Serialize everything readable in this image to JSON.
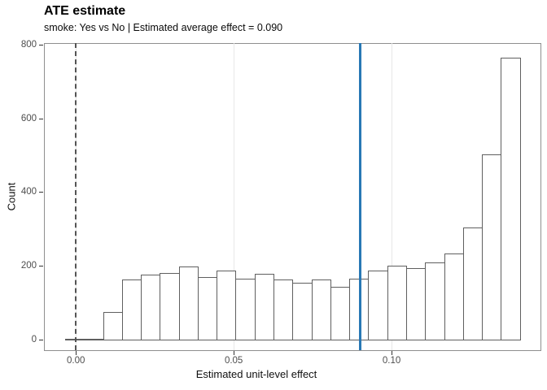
{
  "header": {
    "title": "ATE estimate",
    "subtitle": "smoke: Yes vs No | Estimated average effect = 0.090"
  },
  "chart_data": {
    "type": "bar",
    "subtype": "histogram",
    "title": "ATE estimate",
    "subtitle": "smoke: Yes vs No | Estimated average effect = 0.090",
    "xlabel": "Estimated unit-level effect",
    "ylabel": "Count",
    "xlim": [
      -0.0101,
      0.1474
    ],
    "ylim": [
      -30.9,
      804.4
    ],
    "grid": "vertical-only",
    "binwidth": 0.006,
    "bins": [
      {
        "x0": -0.0034,
        "count": 2
      },
      {
        "x0": 0.0026,
        "count": 2
      },
      {
        "x0": 0.0086,
        "count": 75
      },
      {
        "x0": 0.0146,
        "count": 163
      },
      {
        "x0": 0.0206,
        "count": 176
      },
      {
        "x0": 0.0266,
        "count": 180
      },
      {
        "x0": 0.0326,
        "count": 198
      },
      {
        "x0": 0.0386,
        "count": 170
      },
      {
        "x0": 0.0446,
        "count": 188
      },
      {
        "x0": 0.0506,
        "count": 165
      },
      {
        "x0": 0.0566,
        "count": 178
      },
      {
        "x0": 0.0626,
        "count": 164
      },
      {
        "x0": 0.0686,
        "count": 154
      },
      {
        "x0": 0.0746,
        "count": 163
      },
      {
        "x0": 0.0806,
        "count": 143
      },
      {
        "x0": 0.0866,
        "count": 165
      },
      {
        "x0": 0.0926,
        "count": 187
      },
      {
        "x0": 0.0986,
        "count": 200
      },
      {
        "x0": 0.1046,
        "count": 194
      },
      {
        "x0": 0.1106,
        "count": 209
      },
      {
        "x0": 0.1166,
        "count": 234
      },
      {
        "x0": 0.1226,
        "count": 304
      },
      {
        "x0": 0.1286,
        "count": 502
      },
      {
        "x0": 0.1346,
        "count": 765
      }
    ],
    "x_ticks": [
      {
        "value": 0.0,
        "label": "0.00"
      },
      {
        "value": 0.05,
        "label": "0.05"
      },
      {
        "value": 0.1,
        "label": "0.10"
      }
    ],
    "y_ticks": [
      {
        "value": 0,
        "label": "0"
      },
      {
        "value": 200,
        "label": "200"
      },
      {
        "value": 400,
        "label": "400"
      },
      {
        "value": 600,
        "label": "600"
      },
      {
        "value": 800,
        "label": "800"
      }
    ],
    "gridlines_x": [
      0.0,
      0.05,
      0.1
    ],
    "vlines": [
      {
        "x": 0.0,
        "style": "dashed",
        "color": "#545454",
        "width": 2,
        "name": "zero-reference-line"
      },
      {
        "x": 0.09,
        "style": "solid",
        "color": "#2878b5",
        "width": 3,
        "name": "ate-estimate-line"
      }
    ],
    "colors": {
      "bar_fill": "#ffffff",
      "bar_border": "#5f5f5f",
      "panel_border": "#8f8f8f",
      "gridline": "#e7e7e7",
      "dashed_line": "#545454",
      "ate_line": "#2878b5",
      "tick_label": "#4d4d4d"
    }
  }
}
